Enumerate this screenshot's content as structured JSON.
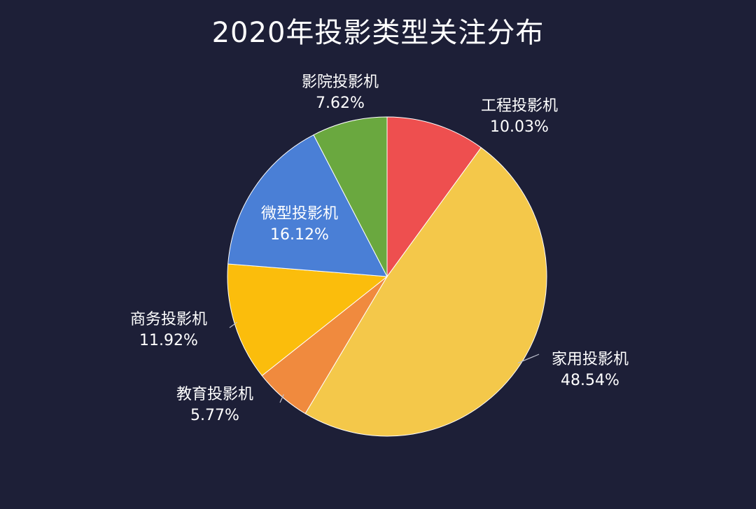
{
  "chart_data": {
    "type": "pie",
    "title": "2020年投影类型关注分布",
    "legend": "none",
    "slices": [
      {
        "label": "工程投影机",
        "value": 10.03,
        "pct_label": "10.03%",
        "color": "#ee4f4f"
      },
      {
        "label": "家用投影机",
        "value": 48.54,
        "pct_label": "48.54%",
        "color": "#f4c84a"
      },
      {
        "label": "教育投影机",
        "value": 5.77,
        "pct_label": "5.77%",
        "color": "#f08a3e"
      },
      {
        "label": "商务投影机",
        "value": 11.92,
        "pct_label": "11.92%",
        "color": "#fbbd0c"
      },
      {
        "label": "微型投影机",
        "value": 16.12,
        "pct_label": "16.12%",
        "color": "#4a7fd6"
      },
      {
        "label": "影院投影机",
        "value": 7.62,
        "pct_label": "7.62%",
        "color": "#6aa83f"
      }
    ]
  }
}
